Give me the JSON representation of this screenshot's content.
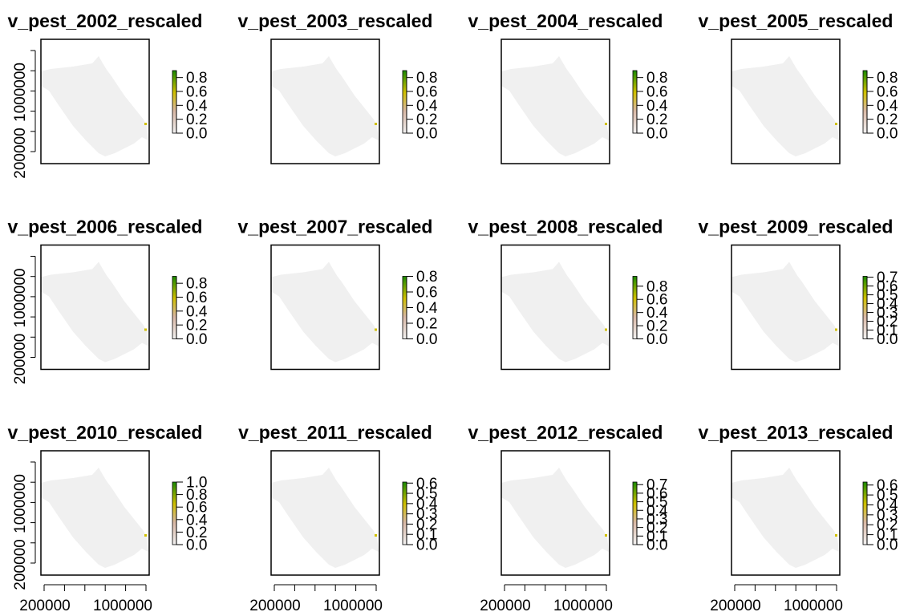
{
  "chart_data": {
    "type": "heatmap",
    "layout": "3x4 grid of raster map panels with continuous colour legends",
    "x_ticks": [
      "200000",
      "1000000"
    ],
    "y_ticks": [
      "200000",
      "1000000"
    ],
    "colors": {
      "land": "#f0f0f0",
      "frame": "#000000",
      "ramp_low": "#f2f2f2",
      "ramp_mid1": "#d9b8a6",
      "ramp_mid2": "#d0c000",
      "ramp_high": "#1a8a00"
    },
    "panels": [
      {
        "title": "v_pest_2002_rescaled",
        "legend_ticks": [
          "0.0",
          "0.2",
          "0.4",
          "0.6",
          "0.8"
        ],
        "legend_values": [
          0,
          0.2,
          0.4,
          0.6,
          0.8
        ],
        "legend_max": 0.9
      },
      {
        "title": "v_pest_2003_rescaled",
        "legend_ticks": [
          "0.0",
          "0.2",
          "0.4",
          "0.6",
          "0.8"
        ],
        "legend_values": [
          0,
          0.2,
          0.4,
          0.6,
          0.8
        ],
        "legend_max": 0.9
      },
      {
        "title": "v_pest_2004_rescaled",
        "legend_ticks": [
          "0.0",
          "0.2",
          "0.4",
          "0.6",
          "0.8"
        ],
        "legend_values": [
          0,
          0.2,
          0.4,
          0.6,
          0.8
        ],
        "legend_max": 0.9
      },
      {
        "title": "v_pest_2005_rescaled",
        "legend_ticks": [
          "0.0",
          "0.2",
          "0.4",
          "0.6",
          "0.8"
        ],
        "legend_values": [
          0,
          0.2,
          0.4,
          0.6,
          0.8
        ],
        "legend_max": 0.9
      },
      {
        "title": "v_pest_2006_rescaled",
        "legend_ticks": [
          "0.0",
          "0.2",
          "0.4",
          "0.6",
          "0.8"
        ],
        "legend_values": [
          0,
          0.2,
          0.4,
          0.6,
          0.8
        ],
        "legend_max": 0.9
      },
      {
        "title": "v_pest_2007_rescaled",
        "legend_ticks": [
          "0.0",
          "0.2",
          "0.4",
          "0.6",
          "0.8"
        ],
        "legend_values": [
          0,
          0.2,
          0.4,
          0.6,
          0.8
        ],
        "legend_max": 0.8
      },
      {
        "title": "v_pest_2008_rescaled",
        "legend_ticks": [
          "0.0",
          "0.2",
          "0.4",
          "0.6",
          "0.8"
        ],
        "legend_values": [
          0,
          0.2,
          0.4,
          0.6,
          0.8
        ],
        "legend_max": 0.95
      },
      {
        "title": "v_pest_2009_rescaled",
        "legend_ticks": [
          "0.0",
          "0.1",
          "0.2",
          "0.3",
          "0.4",
          "0.5",
          "0.6",
          "0.7"
        ],
        "legend_values": [
          0,
          0.1,
          0.2,
          0.3,
          0.4,
          0.5,
          0.6,
          0.7
        ],
        "legend_max": 0.71
      },
      {
        "title": "v_pest_2010_rescaled",
        "legend_ticks": [
          "0.0",
          "0.2",
          "0.4",
          "0.6",
          "0.8",
          "1.0"
        ],
        "legend_values": [
          0,
          0.2,
          0.4,
          0.6,
          0.8,
          1.0
        ],
        "legend_max": 1.0
      },
      {
        "title": "v_pest_2011_rescaled",
        "legend_ticks": [
          "0.0",
          "0.1",
          "0.2",
          "0.3",
          "0.4",
          "0.5",
          "0.6"
        ],
        "legend_values": [
          0,
          0.1,
          0.2,
          0.3,
          0.4,
          0.5,
          0.6
        ],
        "legend_max": 0.61
      },
      {
        "title": "v_pest_2012_rescaled",
        "legend_ticks": [
          "0.0",
          "0.1",
          "0.2",
          "0.3",
          "0.4",
          "0.5",
          "0.6",
          "0.7"
        ],
        "legend_values": [
          0,
          0.1,
          0.2,
          0.3,
          0.4,
          0.5,
          0.6,
          0.7
        ],
        "legend_max": 0.73
      },
      {
        "title": "v_pest_2013_rescaled",
        "legend_ticks": [
          "0.0",
          "0.1",
          "0.2",
          "0.3",
          "0.4",
          "0.5",
          "0.6"
        ],
        "legend_values": [
          0,
          0.1,
          0.2,
          0.3,
          0.4,
          0.5,
          0.6
        ],
        "legend_max": 0.63
      }
    ]
  }
}
